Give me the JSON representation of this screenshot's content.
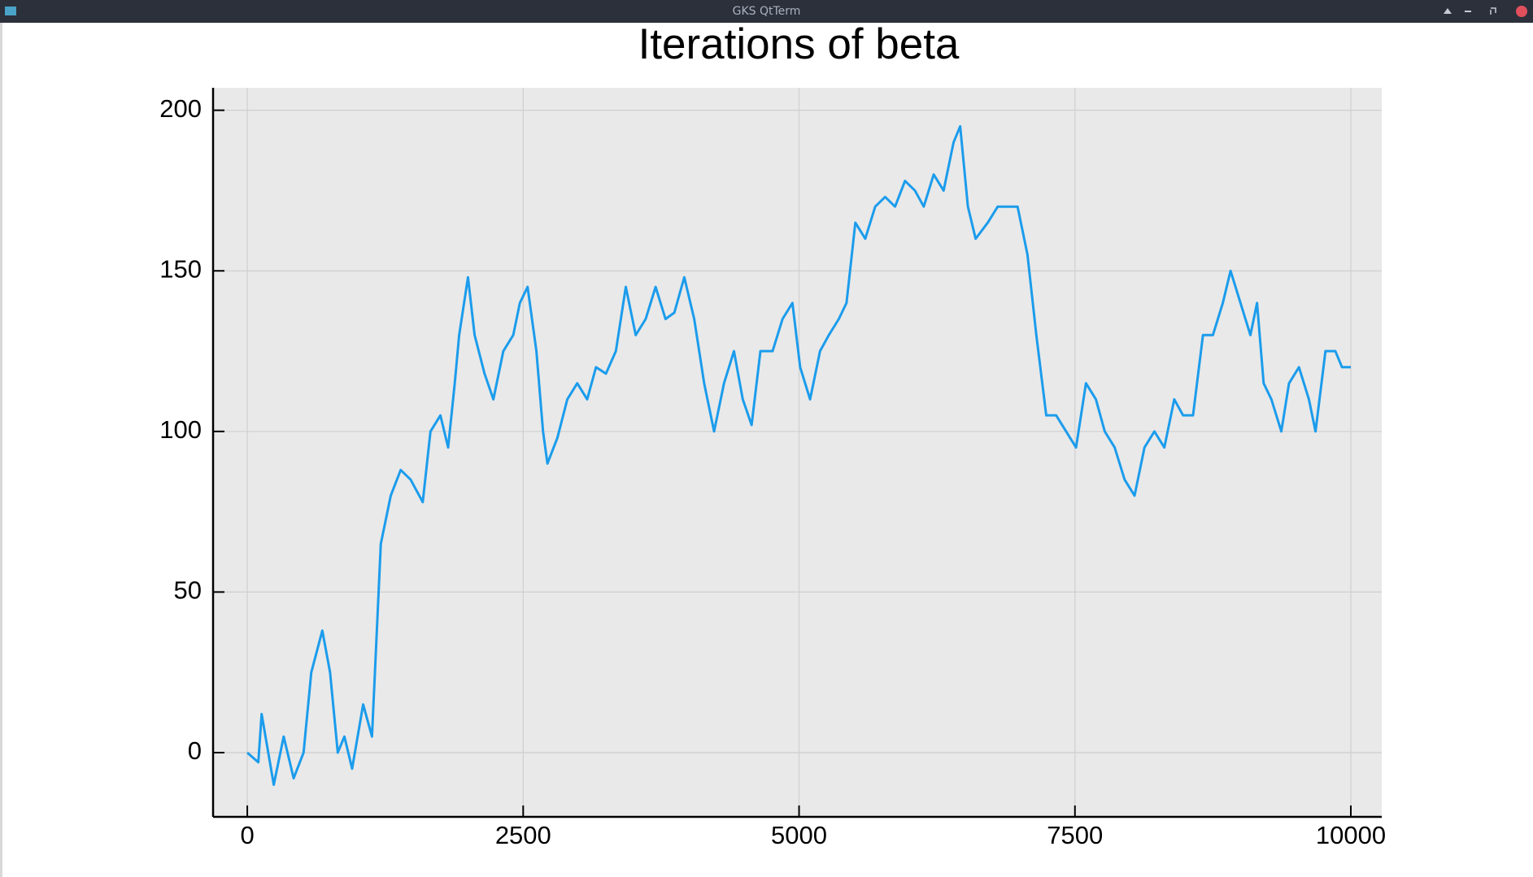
{
  "window_title": "GKS QtTerm",
  "chart_data": {
    "type": "line",
    "title": "Iterations of beta",
    "x": [
      0,
      100,
      130,
      240,
      330,
      420,
      510,
      580,
      680,
      750,
      820,
      880,
      950,
      1050,
      1130,
      1170,
      1210,
      1300,
      1390,
      1480,
      1590,
      1660,
      1750,
      1820,
      1880,
      1920,
      2000,
      2060,
      2150,
      2230,
      2320,
      2410,
      2470,
      2540,
      2620,
      2680,
      2720,
      2810,
      2900,
      2990,
      3080,
      3160,
      3250,
      3340,
      3430,
      3520,
      3610,
      3700,
      3790,
      3870,
      3960,
      4050,
      4140,
      4230,
      4320,
      4410,
      4490,
      4570,
      4650,
      4760,
      4850,
      4940,
      5010,
      5100,
      5190,
      5270,
      5360,
      5430,
      5510,
      5600,
      5690,
      5780,
      5870,
      5960,
      6050,
      6130,
      6220,
      6310,
      6400,
      6460,
      6530,
      6600,
      6710,
      6800,
      6890,
      6980,
      7070,
      7150,
      7240,
      7330,
      7420,
      7510,
      7600,
      7690,
      7770,
      7860,
      7950,
      8040,
      8130,
      8220,
      8310,
      8400,
      8480,
      8570,
      8660,
      8750,
      8840,
      8910,
      9000,
      9090,
      9150,
      9210,
      9280,
      9370,
      9440,
      9530,
      9620,
      9680,
      9770,
      9860,
      9920,
      10000
    ],
    "series": [
      {
        "color": "#1b9cec",
        "values": [
          0,
          -3,
          12,
          -10,
          5,
          -8,
          0,
          25,
          38,
          25,
          0,
          5,
          -5,
          15,
          5,
          35,
          65,
          80,
          88,
          85,
          78,
          100,
          105,
          95,
          115,
          130,
          148,
          130,
          118,
          110,
          125,
          130,
          140,
          145,
          125,
          100,
          90,
          98,
          110,
          115,
          110,
          120,
          118,
          125,
          145,
          130,
          135,
          145,
          135,
          137,
          148,
          135,
          115,
          100,
          115,
          125,
          110,
          102,
          125,
          125,
          135,
          140,
          120,
          110,
          125,
          130,
          135,
          140,
          165,
          160,
          170,
          173,
          170,
          178,
          175,
          170,
          180,
          175,
          190,
          195,
          170,
          160,
          165,
          170,
          170,
          170,
          155,
          130,
          105,
          105,
          100,
          95,
          115,
          110,
          100,
          95,
          85,
          80,
          95,
          100,
          95,
          110,
          105,
          105,
          130,
          130,
          140,
          150,
          140,
          130,
          140,
          115,
          110,
          100,
          115,
          120,
          110,
          100,
          125,
          125,
          120,
          120
        ]
      }
    ],
    "xlim": [
      -310,
      10280
    ],
    "ylim": [
      -20,
      207
    ],
    "xticks": [
      0,
      2500,
      5000,
      7500,
      10000
    ],
    "yticks": [
      0,
      50,
      100,
      150,
      200
    ],
    "grid": true
  }
}
